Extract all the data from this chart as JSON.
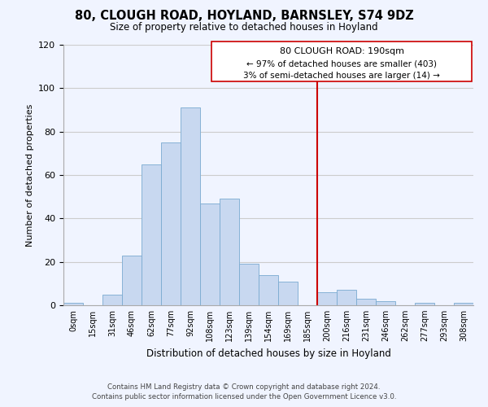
{
  "title": "80, CLOUGH ROAD, HOYLAND, BARNSLEY, S74 9DZ",
  "subtitle": "Size of property relative to detached houses in Hoyland",
  "xlabel": "Distribution of detached houses by size in Hoyland",
  "ylabel": "Number of detached properties",
  "footer_line1": "Contains HM Land Registry data © Crown copyright and database right 2024.",
  "footer_line2": "Contains public sector information licensed under the Open Government Licence v3.0.",
  "bin_labels": [
    "0sqm",
    "15sqm",
    "31sqm",
    "46sqm",
    "62sqm",
    "77sqm",
    "92sqm",
    "108sqm",
    "123sqm",
    "139sqm",
    "154sqm",
    "169sqm",
    "185sqm",
    "200sqm",
    "216sqm",
    "231sqm",
    "246sqm",
    "262sqm",
    "277sqm",
    "293sqm",
    "308sqm"
  ],
  "bar_heights": [
    1,
    0,
    5,
    23,
    65,
    75,
    91,
    47,
    49,
    19,
    14,
    11,
    0,
    6,
    7,
    3,
    2,
    0,
    1,
    0,
    1
  ],
  "bar_color": "#c8d8f0",
  "bar_edge_color": "#7aaad0",
  "grid_color": "#cccccc",
  "vline_color": "#cc0000",
  "annotation_title": "80 CLOUGH ROAD: 190sqm",
  "annotation_line1": "← 97% of detached houses are smaller (403)",
  "annotation_line2": "3% of semi-detached houses are larger (14) →",
  "ylim": [
    0,
    120
  ],
  "yticks": [
    0,
    20,
    40,
    60,
    80,
    100,
    120
  ],
  "bg_color": "#f0f4ff"
}
